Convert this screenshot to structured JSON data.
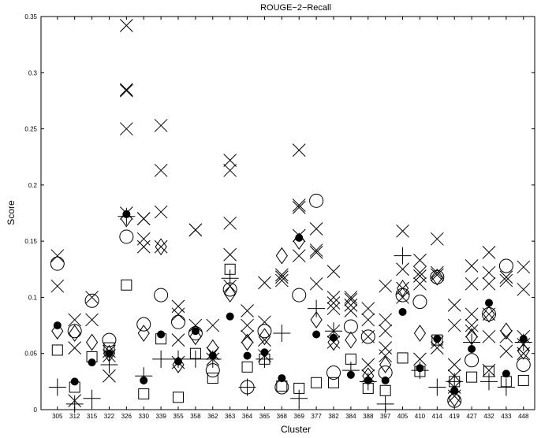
{
  "chart_data": {
    "type": "scatter",
    "title": "ROUGE−2−Recall",
    "xlabel": "Cluster",
    "ylabel": "Score",
    "ylim": [
      0,
      0.35
    ],
    "yticks": [
      "0",
      "0.05",
      "0.1",
      "0.15",
      "0.2",
      "0.25",
      "0.3",
      "0.35"
    ],
    "categories": [
      "305",
      "312",
      "315",
      "322",
      "326",
      "330",
      "339",
      "355",
      "358",
      "362",
      "363",
      "364",
      "365",
      "368",
      "369",
      "377",
      "382",
      "384",
      "388",
      "397",
      "405",
      "410",
      "414",
      "419",
      "427",
      "432",
      "433",
      "448"
    ],
    "grid": false,
    "legend": "none",
    "colors": {
      "marker": "#000000",
      "background": "#ffffff"
    },
    "series": [
      {
        "marker": "x",
        "points": [
          [
            "305",
            0.137
          ],
          [
            "305",
            0.11
          ],
          [
            "312",
            0.08
          ],
          [
            "312",
            0.055
          ],
          [
            "312",
            0.008
          ],
          [
            "315",
            0.1
          ],
          [
            "315",
            0.08
          ],
          [
            "322",
            0.03
          ],
          [
            "322",
            0.052
          ],
          [
            "322",
            0.048
          ],
          [
            "326",
            0.342
          ],
          [
            "326",
            0.285
          ],
          [
            "326",
            0.284
          ],
          [
            "326",
            0.25
          ],
          [
            "326",
            0.175
          ],
          [
            "330",
            0.17
          ],
          [
            "330",
            0.152
          ],
          [
            "330",
            0.145
          ],
          [
            "330",
            0.17
          ],
          [
            "339",
            0.253
          ],
          [
            "339",
            0.213
          ],
          [
            "339",
            0.176
          ],
          [
            "339",
            0.145
          ],
          [
            "355",
            0.092
          ],
          [
            "355",
            0.085
          ],
          [
            "355",
            0.062
          ],
          [
            "355",
            0.042
          ],
          [
            "358",
            0.16
          ],
          [
            "358",
            0.16
          ],
          [
            "358",
            0.075
          ],
          [
            "362",
            0.075
          ],
          [
            "362",
            0.05
          ],
          [
            "362",
            0.045
          ],
          [
            "363",
            0.222
          ],
          [
            "363",
            0.213
          ],
          [
            "363",
            0.166
          ],
          [
            "363",
            0.138
          ],
          [
            "363",
            0.11
          ],
          [
            "364",
            0.088
          ],
          [
            "364",
            0.075
          ],
          [
            "364",
            0.065
          ],
          [
            "365",
            0.113
          ],
          [
            "365",
            0.078
          ],
          [
            "365",
            0.062
          ],
          [
            "365",
            0.048
          ],
          [
            "368",
            0.12
          ],
          [
            "368",
            0.118
          ],
          [
            "368",
            0.115
          ],
          [
            "369",
            0.231
          ],
          [
            "369",
            0.182
          ],
          [
            "369",
            0.18
          ],
          [
            "369",
            0.155
          ],
          [
            "369",
            0.137
          ],
          [
            "377",
            0.161
          ],
          [
            "377",
            0.142
          ],
          [
            "377",
            0.14
          ],
          [
            "377",
            0.112
          ],
          [
            "382",
            0.123
          ],
          [
            "382",
            0.1
          ],
          [
            "382",
            0.095
          ],
          [
            "382",
            0.09
          ],
          [
            "382",
            0.07
          ],
          [
            "382",
            0.06
          ],
          [
            "384",
            0.1
          ],
          [
            "384",
            0.098
          ],
          [
            "384",
            0.093
          ],
          [
            "384",
            0.088
          ],
          [
            "388",
            0.09
          ],
          [
            "388",
            0.08
          ],
          [
            "388",
            0.065
          ],
          [
            "388",
            0.04
          ],
          [
            "388",
            0.03
          ],
          [
            "397",
            0.11
          ],
          [
            "397",
            0.08
          ],
          [
            "397",
            0.07
          ],
          [
            "397",
            0.055
          ],
          [
            "397",
            0.048
          ],
          [
            "405",
            0.159
          ],
          [
            "405",
            0.125
          ],
          [
            "405",
            0.108
          ],
          [
            "405",
            0.1
          ],
          [
            "410",
            0.133
          ],
          [
            "410",
            0.122
          ],
          [
            "410",
            0.119
          ],
          [
            "410",
            0.112
          ],
          [
            "410",
            0.045
          ],
          [
            "414",
            0.152
          ],
          [
            "414",
            0.122
          ],
          [
            "414",
            0.12
          ],
          [
            "414",
            0.06
          ],
          [
            "414",
            0.055
          ],
          [
            "419",
            0.093
          ],
          [
            "419",
            0.075
          ],
          [
            "419",
            0.04
          ],
          [
            "419",
            0.03
          ],
          [
            "419",
            0.02
          ],
          [
            "419",
            0.012
          ],
          [
            "427",
            0.128
          ],
          [
            "427",
            0.112
          ],
          [
            "427",
            0.085
          ],
          [
            "427",
            0.075
          ],
          [
            "427",
            0.07
          ],
          [
            "432",
            0.14
          ],
          [
            "432",
            0.122
          ],
          [
            "432",
            0.112
          ],
          [
            "432",
            0.085
          ],
          [
            "432",
            0.065
          ],
          [
            "432",
            0.035
          ],
          [
            "433",
            0.118
          ],
          [
            "433",
            0.115
          ],
          [
            "433",
            0.065
          ],
          [
            "433",
            0.052
          ],
          [
            "448",
            0.127
          ],
          [
            "448",
            0.107
          ],
          [
            "448",
            0.065
          ],
          [
            "448",
            0.058
          ],
          [
            "448",
            0.05
          ]
        ]
      },
      {
        "marker": "diamond",
        "points": [
          [
            "305",
            0.07
          ],
          [
            "312",
            0.068
          ],
          [
            "315",
            0.06
          ],
          [
            "322",
            0.05
          ],
          [
            "326",
            0.17
          ],
          [
            "330",
            0.068
          ],
          [
            "339",
            0.145
          ],
          [
            "355",
            0.04
          ],
          [
            "358",
            0.065
          ],
          [
            "362",
            0.055
          ],
          [
            "363",
            0.103
          ],
          [
            "364",
            0.06
          ],
          [
            "365",
            0.065
          ],
          [
            "368",
            0.137
          ],
          [
            "369",
            0.15
          ],
          [
            "377",
            0.08
          ],
          [
            "382",
            0.06
          ],
          [
            "384",
            0.062
          ],
          [
            "388",
            0.03
          ],
          [
            "397",
            0.04
          ],
          [
            "405",
            0.108
          ],
          [
            "410",
            0.068
          ],
          [
            "414",
            0.118
          ],
          [
            "419",
            0.01
          ],
          [
            "427",
            0.065
          ],
          [
            "432",
            0.085
          ],
          [
            "433",
            0.07
          ],
          [
            "448",
            0.052
          ]
        ]
      },
      {
        "marker": "circle-open",
        "points": [
          [
            "305",
            0.13
          ],
          [
            "312",
            0.07
          ],
          [
            "315",
            0.097
          ],
          [
            "322",
            0.062
          ],
          [
            "326",
            0.154
          ],
          [
            "330",
            0.076
          ],
          [
            "339",
            0.102
          ],
          [
            "355",
            0.078
          ],
          [
            "358",
            0.068
          ],
          [
            "362",
            0.035
          ],
          [
            "363",
            0.107
          ],
          [
            "364",
            0.02
          ],
          [
            "365",
            0.07
          ],
          [
            "368",
            0.02
          ],
          [
            "369",
            0.102
          ],
          [
            "377",
            0.186
          ],
          [
            "382",
            0.033
          ],
          [
            "384",
            0.074
          ],
          [
            "388",
            0.065
          ],
          [
            "397",
            0.033
          ],
          [
            "405",
            0.102
          ],
          [
            "410",
            0.096
          ],
          [
            "414",
            0.118
          ],
          [
            "419",
            0.008
          ],
          [
            "427",
            0.044
          ],
          [
            "432",
            0.085
          ],
          [
            "433",
            0.128
          ],
          [
            "448",
            0.04
          ]
        ]
      },
      {
        "marker": "circle-filled",
        "points": [
          [
            "305",
            0.075
          ],
          [
            "312",
            0.025
          ],
          [
            "315",
            0.042
          ],
          [
            "322",
            0.05
          ],
          [
            "326",
            0.174
          ],
          [
            "330",
            0.026
          ],
          [
            "339",
            0.067
          ],
          [
            "355",
            0.043
          ],
          [
            "358",
            0.07
          ],
          [
            "362",
            0.048
          ],
          [
            "363",
            0.083
          ],
          [
            "364",
            0.048
          ],
          [
            "365",
            0.051
          ],
          [
            "368",
            0.028
          ],
          [
            "369",
            0.153
          ],
          [
            "377",
            0.067
          ],
          [
            "382",
            0.064
          ],
          [
            "384",
            0.031
          ],
          [
            "388",
            0.026
          ],
          [
            "397",
            0.026
          ],
          [
            "405",
            0.087
          ],
          [
            "410",
            0.037
          ],
          [
            "414",
            0.063
          ],
          [
            "419",
            0.017
          ],
          [
            "427",
            0.054
          ],
          [
            "432",
            0.095
          ],
          [
            "433",
            0.032
          ],
          [
            "448",
            0.063
          ]
        ]
      },
      {
        "marker": "square",
        "points": [
          [
            "305",
            0.053
          ],
          [
            "312",
            0.02
          ],
          [
            "315",
            0.047
          ],
          [
            "322",
            0.055
          ],
          [
            "326",
            0.111
          ],
          [
            "330",
            0.014
          ],
          [
            "339",
            0.063
          ],
          [
            "355",
            0.011
          ],
          [
            "358",
            0.05
          ],
          [
            "362",
            0.028
          ],
          [
            "363",
            0.125
          ],
          [
            "364",
            0.038
          ],
          [
            "365",
            0.045
          ],
          [
            "368",
            0.021
          ],
          [
            "369",
            0.019
          ],
          [
            "377",
            0.024
          ],
          [
            "382",
            0.024
          ],
          [
            "384",
            0.045
          ],
          [
            "388",
            0.019
          ],
          [
            "397",
            0.017
          ],
          [
            "405",
            0.046
          ],
          [
            "410",
            0.034
          ],
          [
            "414",
            0.062
          ],
          [
            "419",
            0.025
          ],
          [
            "427",
            0.029
          ],
          [
            "432",
            0.034
          ],
          [
            "433",
            0.025
          ],
          [
            "448",
            0.026
          ]
        ]
      },
      {
        "marker": "plus",
        "points": [
          [
            "305",
            0.02
          ],
          [
            "312",
            0.005
          ],
          [
            "315",
            0.01
          ],
          [
            "322",
            0.04
          ],
          [
            "326",
            0.172
          ],
          [
            "330",
            0.03
          ],
          [
            "339",
            0.045
          ],
          [
            "355",
            0.045
          ],
          [
            "358",
            0.045
          ],
          [
            "362",
            0.045
          ],
          [
            "363",
            0.117
          ],
          [
            "364",
            0.02
          ],
          [
            "365",
            0.045
          ],
          [
            "368",
            0.068
          ],
          [
            "369",
            0.01
          ],
          [
            "377",
            0.09
          ],
          [
            "382",
            0.07
          ],
          [
            "384",
            0.035
          ],
          [
            "388",
            0.025
          ],
          [
            "397",
            0.005
          ],
          [
            "405",
            0.137
          ],
          [
            "410",
            0.035
          ],
          [
            "414",
            0.02
          ],
          [
            "419",
            0.025
          ],
          [
            "427",
            0.06
          ],
          [
            "432",
            0.025
          ],
          [
            "433",
            0.02
          ],
          [
            "448",
            0.06
          ]
        ]
      }
    ]
  }
}
